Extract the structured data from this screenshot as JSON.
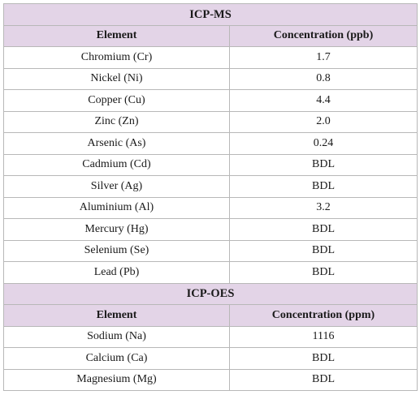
{
  "sections": [
    {
      "title": "ICP-MS",
      "headers": [
        "Element",
        "Concentration (ppb)"
      ],
      "rows": [
        [
          "Chromium (Cr)",
          "1.7"
        ],
        [
          "Nickel (Ni)",
          "0.8"
        ],
        [
          "Copper (Cu)",
          "4.4"
        ],
        [
          "Zinc (Zn)",
          "2.0"
        ],
        [
          "Arsenic (As)",
          "0.24"
        ],
        [
          "Cadmium (Cd)",
          "BDL"
        ],
        [
          "Silver (Ag)",
          "BDL"
        ],
        [
          "Aluminium (Al)",
          "3.2"
        ],
        [
          "Mercury (Hg)",
          "BDL"
        ],
        [
          "Selenium (Se)",
          "BDL"
        ],
        [
          "Lead (Pb)",
          "BDL"
        ]
      ]
    },
    {
      "title": "ICP-OES",
      "headers": [
        "Element",
        "Concentration (ppm)"
      ],
      "rows": [
        [
          "Sodium (Na)",
          "1116"
        ],
        [
          "Calcium (Ca)",
          "BDL"
        ],
        [
          "Magnesium (Mg)",
          "BDL"
        ]
      ]
    }
  ],
  "colors": {
    "header_background": "#e3d4e7",
    "border": "#b8b8b8"
  }
}
